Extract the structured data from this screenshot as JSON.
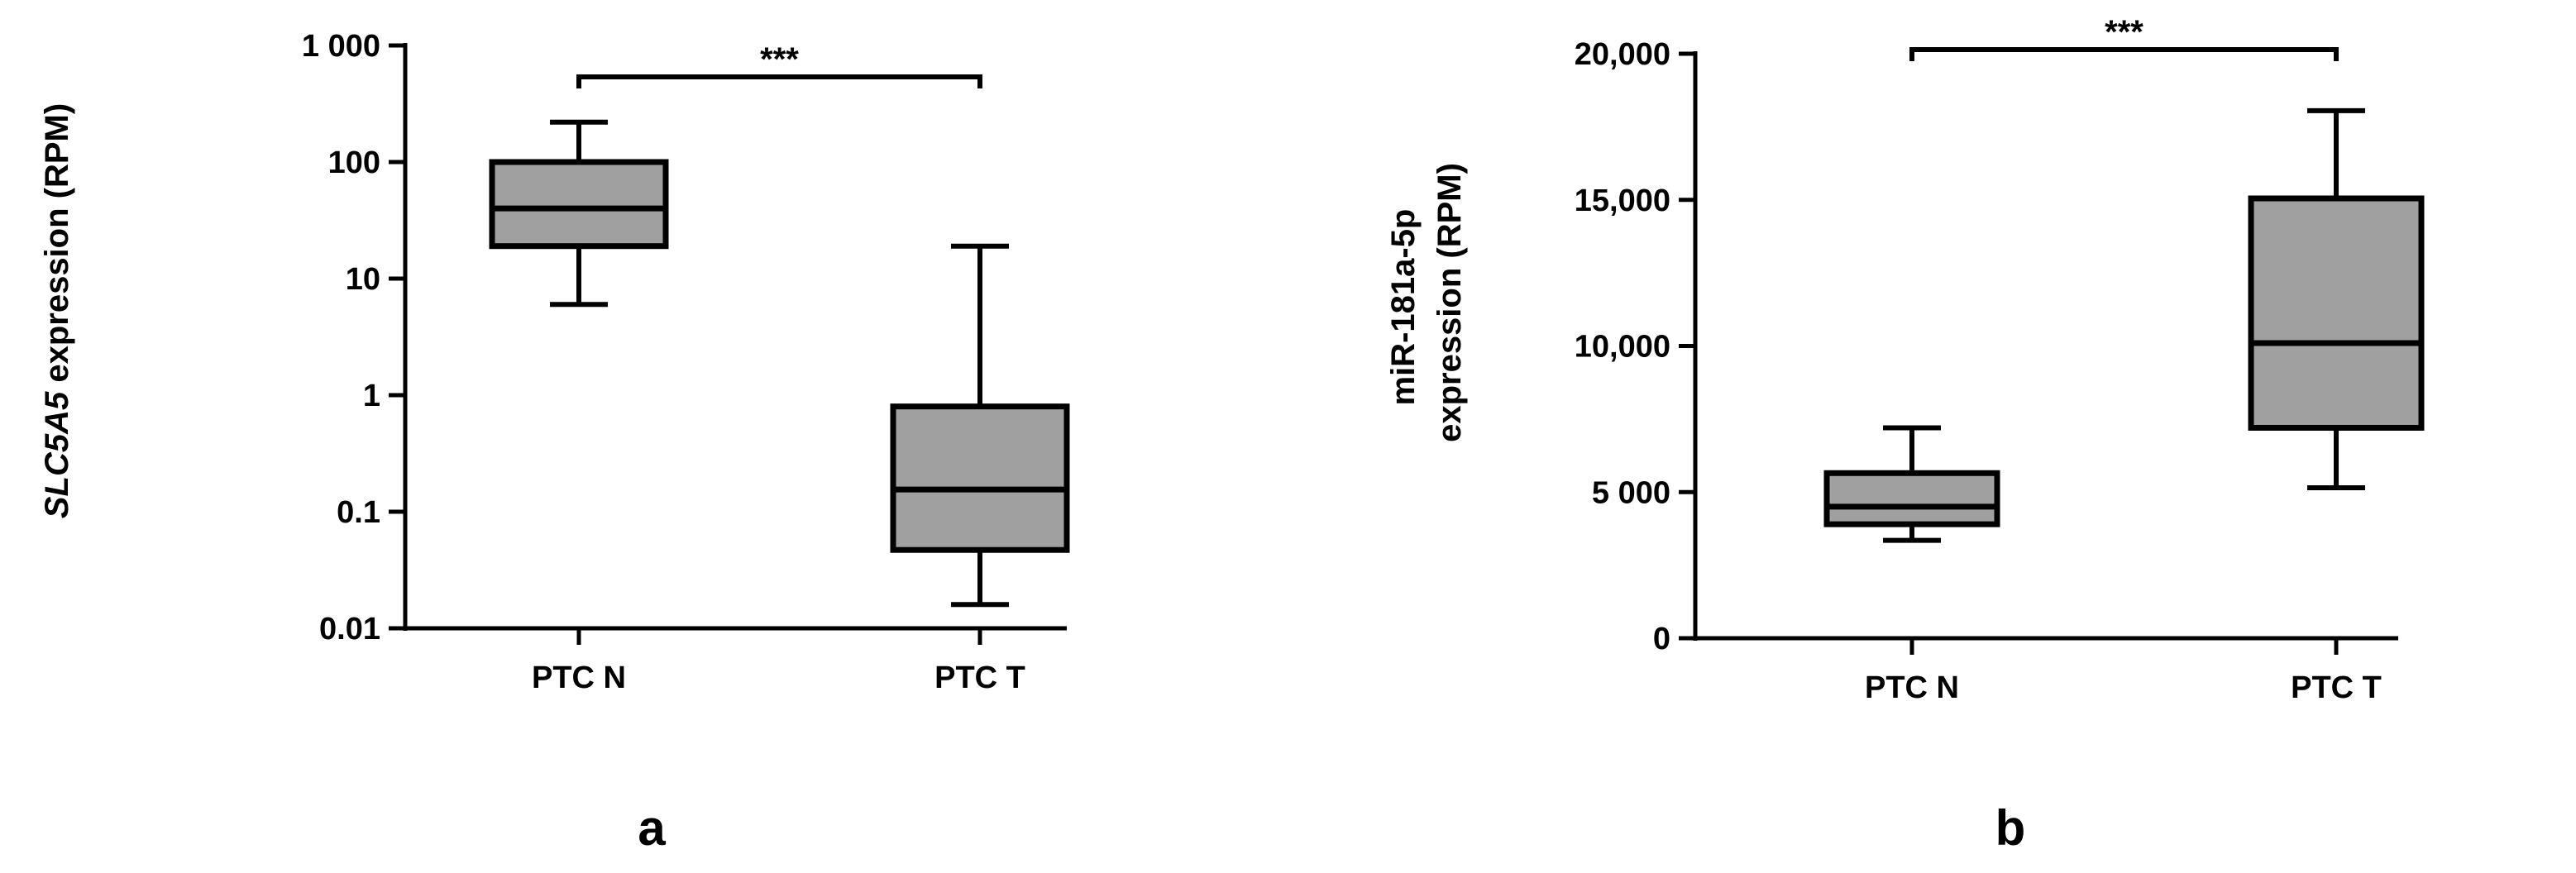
{
  "chart_data": [
    {
      "type": "box",
      "panel_label": "a",
      "ylabel_italic": "SLC5A5",
      "ylabel_rest": " expression (RPM)",
      "yscale": "log",
      "ylim": [
        0.01,
        1000
      ],
      "yticks": [
        {
          "value": 0.01,
          "label": "0.01"
        },
        {
          "value": 0.1,
          "label": "0.1"
        },
        {
          "value": 1,
          "label": "1"
        },
        {
          "value": 10,
          "label": "10"
        },
        {
          "value": 100,
          "label": "100"
        },
        {
          "value": 1000,
          "label": "1 000"
        }
      ],
      "categories": [
        "PTC N",
        "PTC T"
      ],
      "boxes": [
        {
          "min": 6,
          "q1": 19,
          "median": 40,
          "q3": 100,
          "max": 220
        },
        {
          "min": 0.016,
          "q1": 0.047,
          "median": 0.155,
          "q3": 0.8,
          "max": 19
        }
      ],
      "significance": "***",
      "colors": {
        "box_fill": "#a0a0a0",
        "line": "#000000"
      }
    },
    {
      "type": "box",
      "panel_label": "b",
      "ylabel_line1": "miR-181a-5p",
      "ylabel_line2": "expression (RPM)",
      "yscale": "linear",
      "ylim": [
        0,
        20000
      ],
      "yticks": [
        {
          "value": 0,
          "label": "0"
        },
        {
          "value": 5000,
          "label": "5 000"
        },
        {
          "value": 10000,
          "label": "10,000"
        },
        {
          "value": 15000,
          "label": "15,000"
        },
        {
          "value": 20000,
          "label": "20,000"
        }
      ],
      "categories": [
        "PTC N",
        "PTC T"
      ],
      "boxes": [
        {
          "min": 3350,
          "q1": 3900,
          "median": 4500,
          "q3": 5650,
          "max": 7200
        },
        {
          "min": 5150,
          "q1": 7200,
          "median": 10100,
          "q3": 15050,
          "max": 18050
        }
      ],
      "significance": "***",
      "colors": {
        "box_fill": "#a0a0a0",
        "line": "#000000"
      }
    }
  ]
}
